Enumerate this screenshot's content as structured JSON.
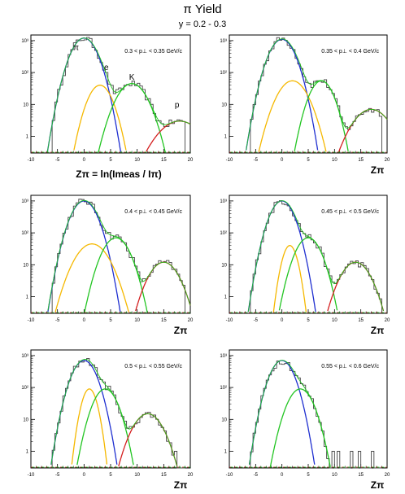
{
  "figure": {
    "title": "π Yield",
    "subtitle": "y = 0.2 - 0.3"
  },
  "colors": {
    "pion": "#1f2fd0",
    "electron": "#f5b800",
    "kaon": "#22c522",
    "proton": "#d42020",
    "total_fit": "#22c522",
    "data": "#444444"
  },
  "chart_data": [
    {
      "type": "line",
      "panel": "pt-0.30-0.35",
      "pt_label": "0.3 < p⊥ < 0.35 GeV/c",
      "xlabel": "Zπ = ln(Imeas / Iπ)",
      "xlim": [
        -10,
        20
      ],
      "ylim_log": [
        0.3,
        1500
      ],
      "yscale": "log",
      "x_ticks": [
        "-10",
        "-5",
        "0",
        "5",
        "10",
        "15",
        "20"
      ],
      "y_ticks": [
        "1",
        "10",
        "10²",
        "10³"
      ],
      "particle_labels": [
        "π",
        "e",
        "K",
        "p"
      ],
      "series": [
        {
          "species": "pion",
          "amp": 1200,
          "mean": 0.0,
          "sigma": 1.7
        },
        {
          "species": "electron",
          "amp": 40,
          "mean": 3.0,
          "sigma": 1.6
        },
        {
          "species": "kaon",
          "amp": 45,
          "mean": 9.0,
          "sigma": 2.0
        },
        {
          "species": "proton",
          "amp": 3,
          "mean": 18.0,
          "sigma": 3.0
        }
      ]
    },
    {
      "type": "line",
      "panel": "pt-0.35-0.40",
      "pt_label": "0.35 < p⊥ < 0.4 GeV/c",
      "xlabel": "Zπ",
      "xlim": [
        -10,
        20
      ],
      "ylim_log": [
        0.3,
        1500
      ],
      "yscale": "log",
      "x_ticks": [
        "-10",
        "-5",
        "0",
        "5",
        "10",
        "15",
        "20"
      ],
      "y_ticks": [
        "1",
        "10",
        "10²",
        "10³"
      ],
      "particle_labels": [],
      "series": [
        {
          "species": "pion",
          "amp": 1100,
          "mean": 0.0,
          "sigma": 1.7
        },
        {
          "species": "electron",
          "amp": 55,
          "mean": 2.0,
          "sigma": 2.0
        },
        {
          "species": "kaon",
          "amp": 55,
          "mean": 7.5,
          "sigma": 1.6
        },
        {
          "species": "proton",
          "amp": 7,
          "mean": 17.0,
          "sigma": 2.5
        }
      ]
    },
    {
      "type": "line",
      "panel": "pt-0.40-0.45",
      "pt_label": "0.4 < p⊥ < 0.45 GeV/c",
      "xlabel": "Zπ",
      "xlim": [
        -10,
        20
      ],
      "ylim_log": [
        0.3,
        1500
      ],
      "yscale": "log",
      "x_ticks": [
        "-10",
        "-5",
        "0",
        "5",
        "10",
        "15",
        "20"
      ],
      "y_ticks": [
        "1",
        "10",
        "10²",
        "10³"
      ],
      "particle_labels": [],
      "series": [
        {
          "species": "pion",
          "amp": 1000,
          "mean": 0.0,
          "sigma": 1.7
        },
        {
          "species": "electron",
          "amp": 45,
          "mean": 1.5,
          "sigma": 2.2
        },
        {
          "species": "kaon",
          "amp": 70,
          "mean": 6.0,
          "sigma": 1.8
        },
        {
          "species": "proton",
          "amp": 12,
          "mean": 15.0,
          "sigma": 2.0
        }
      ]
    },
    {
      "type": "line",
      "panel": "pt-0.45-0.50",
      "pt_label": "0.45 < p⊥ < 0.5 GeV/c",
      "xlabel": "Zπ",
      "xlim": [
        -10,
        20
      ],
      "ylim_log": [
        0.3,
        1500
      ],
      "yscale": "log",
      "x_ticks": [
        "-10",
        "-5",
        "0",
        "5",
        "10",
        "15",
        "20"
      ],
      "y_ticks": [
        "1",
        "10",
        "10²",
        "10³"
      ],
      "particle_labels": [],
      "series": [
        {
          "species": "pion",
          "amp": 1000,
          "mean": 0.0,
          "sigma": 1.6
        },
        {
          "species": "electron",
          "amp": 40,
          "mean": 1.5,
          "sigma": 1.0
        },
        {
          "species": "kaon",
          "amp": 70,
          "mean": 5.0,
          "sigma": 1.7
        },
        {
          "species": "proton",
          "amp": 12,
          "mean": 14.0,
          "sigma": 2.0
        }
      ]
    },
    {
      "type": "line",
      "panel": "pt-0.50-0.55",
      "pt_label": "0.5 < p⊥ < 0.55 GeV/c",
      "xlabel": "Zπ",
      "xlim": [
        -10,
        20
      ],
      "ylim_log": [
        0.3,
        1500
      ],
      "yscale": "log",
      "x_ticks": [
        "-10",
        "-5",
        "0",
        "5",
        "10",
        "15",
        "20"
      ],
      "y_ticks": [
        "1",
        "10",
        "10²",
        "10³"
      ],
      "particle_labels": [],
      "series": [
        {
          "species": "pion",
          "amp": 700,
          "mean": 0.0,
          "sigma": 1.6
        },
        {
          "species": "electron",
          "amp": 90,
          "mean": 1.0,
          "sigma": 1.0
        },
        {
          "species": "kaon",
          "amp": 90,
          "mean": 4.0,
          "sigma": 1.6
        },
        {
          "species": "proton",
          "amp": 15,
          "mean": 12.0,
          "sigma": 2.0
        }
      ]
    },
    {
      "type": "line",
      "panel": "pt-0.55-0.60",
      "pt_label": "0.55 < p⊥ < 0.6 GeV/c",
      "xlabel": "Zπ",
      "xlim": [
        -10,
        20
      ],
      "ylim_log": [
        0.3,
        1500
      ],
      "yscale": "log",
      "x_ticks": [
        "-10",
        "-5",
        "0",
        "5",
        "10",
        "15",
        "20"
      ],
      "y_ticks": [
        "1",
        "10",
        "10²",
        "10³"
      ],
      "particle_labels": [],
      "series": [
        {
          "species": "pion",
          "amp": 700,
          "mean": 0.0,
          "sigma": 1.6
        },
        {
          "species": "kaon",
          "amp": 90,
          "mean": 3.5,
          "sigma": 1.7
        }
      ]
    }
  ]
}
